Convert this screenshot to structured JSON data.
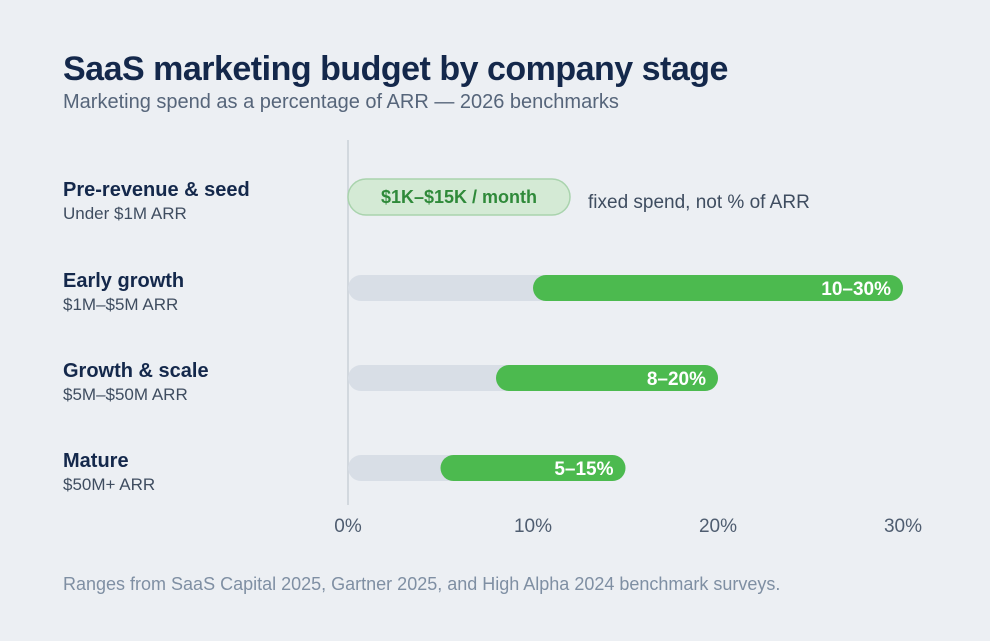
{
  "header": {
    "title": "SaaS marketing budget by company stage",
    "subtitle": "Marketing spend as a percentage of ARR — 2026 benchmarks"
  },
  "footer": {
    "source": "Ranges from SaaS Capital 2025, Gartner 2025, and High Alpha 2024 benchmark surveys."
  },
  "chart_data": {
    "type": "bar",
    "orientation": "horizontal",
    "title": "SaaS marketing budget by company stage",
    "subtitle": "Marketing spend as a percentage of ARR — 2026 benchmarks",
    "xlabel": "",
    "ylabel": "",
    "xlim": [
      0,
      30
    ],
    "x_ticks": [
      "0%",
      "10%",
      "20%",
      "30%"
    ],
    "x_tick_values": [
      0,
      10,
      20,
      30
    ],
    "grid": false,
    "legend": "none",
    "colors": {
      "range": "#4cba4f",
      "track": "#d8dee6",
      "pill_fill": "#d4ead5",
      "pill_stroke": "#a9d3ad",
      "pill_text": "#2f8a3a",
      "axis": "#c9d0d8"
    },
    "categories": [
      {
        "name": "Pre-revenue & seed",
        "sub": "Under $1M ARR",
        "kind": "fixed",
        "label": "$1K–$15K / month",
        "note": "fixed spend, not % of ARR",
        "track_end": 12
      },
      {
        "name": "Early growth",
        "sub": "$1M–$5M ARR",
        "kind": "range",
        "low": 10,
        "high": 30,
        "label": "10–30%"
      },
      {
        "name": "Growth & scale",
        "sub": "$5M–$50M ARR",
        "kind": "range",
        "low": 8,
        "high": 20,
        "label": "8–20%"
      },
      {
        "name": "Mature",
        "sub": "$50M+ ARR",
        "kind": "range",
        "low": 5,
        "high": 15,
        "label": "5–15%"
      }
    ]
  }
}
